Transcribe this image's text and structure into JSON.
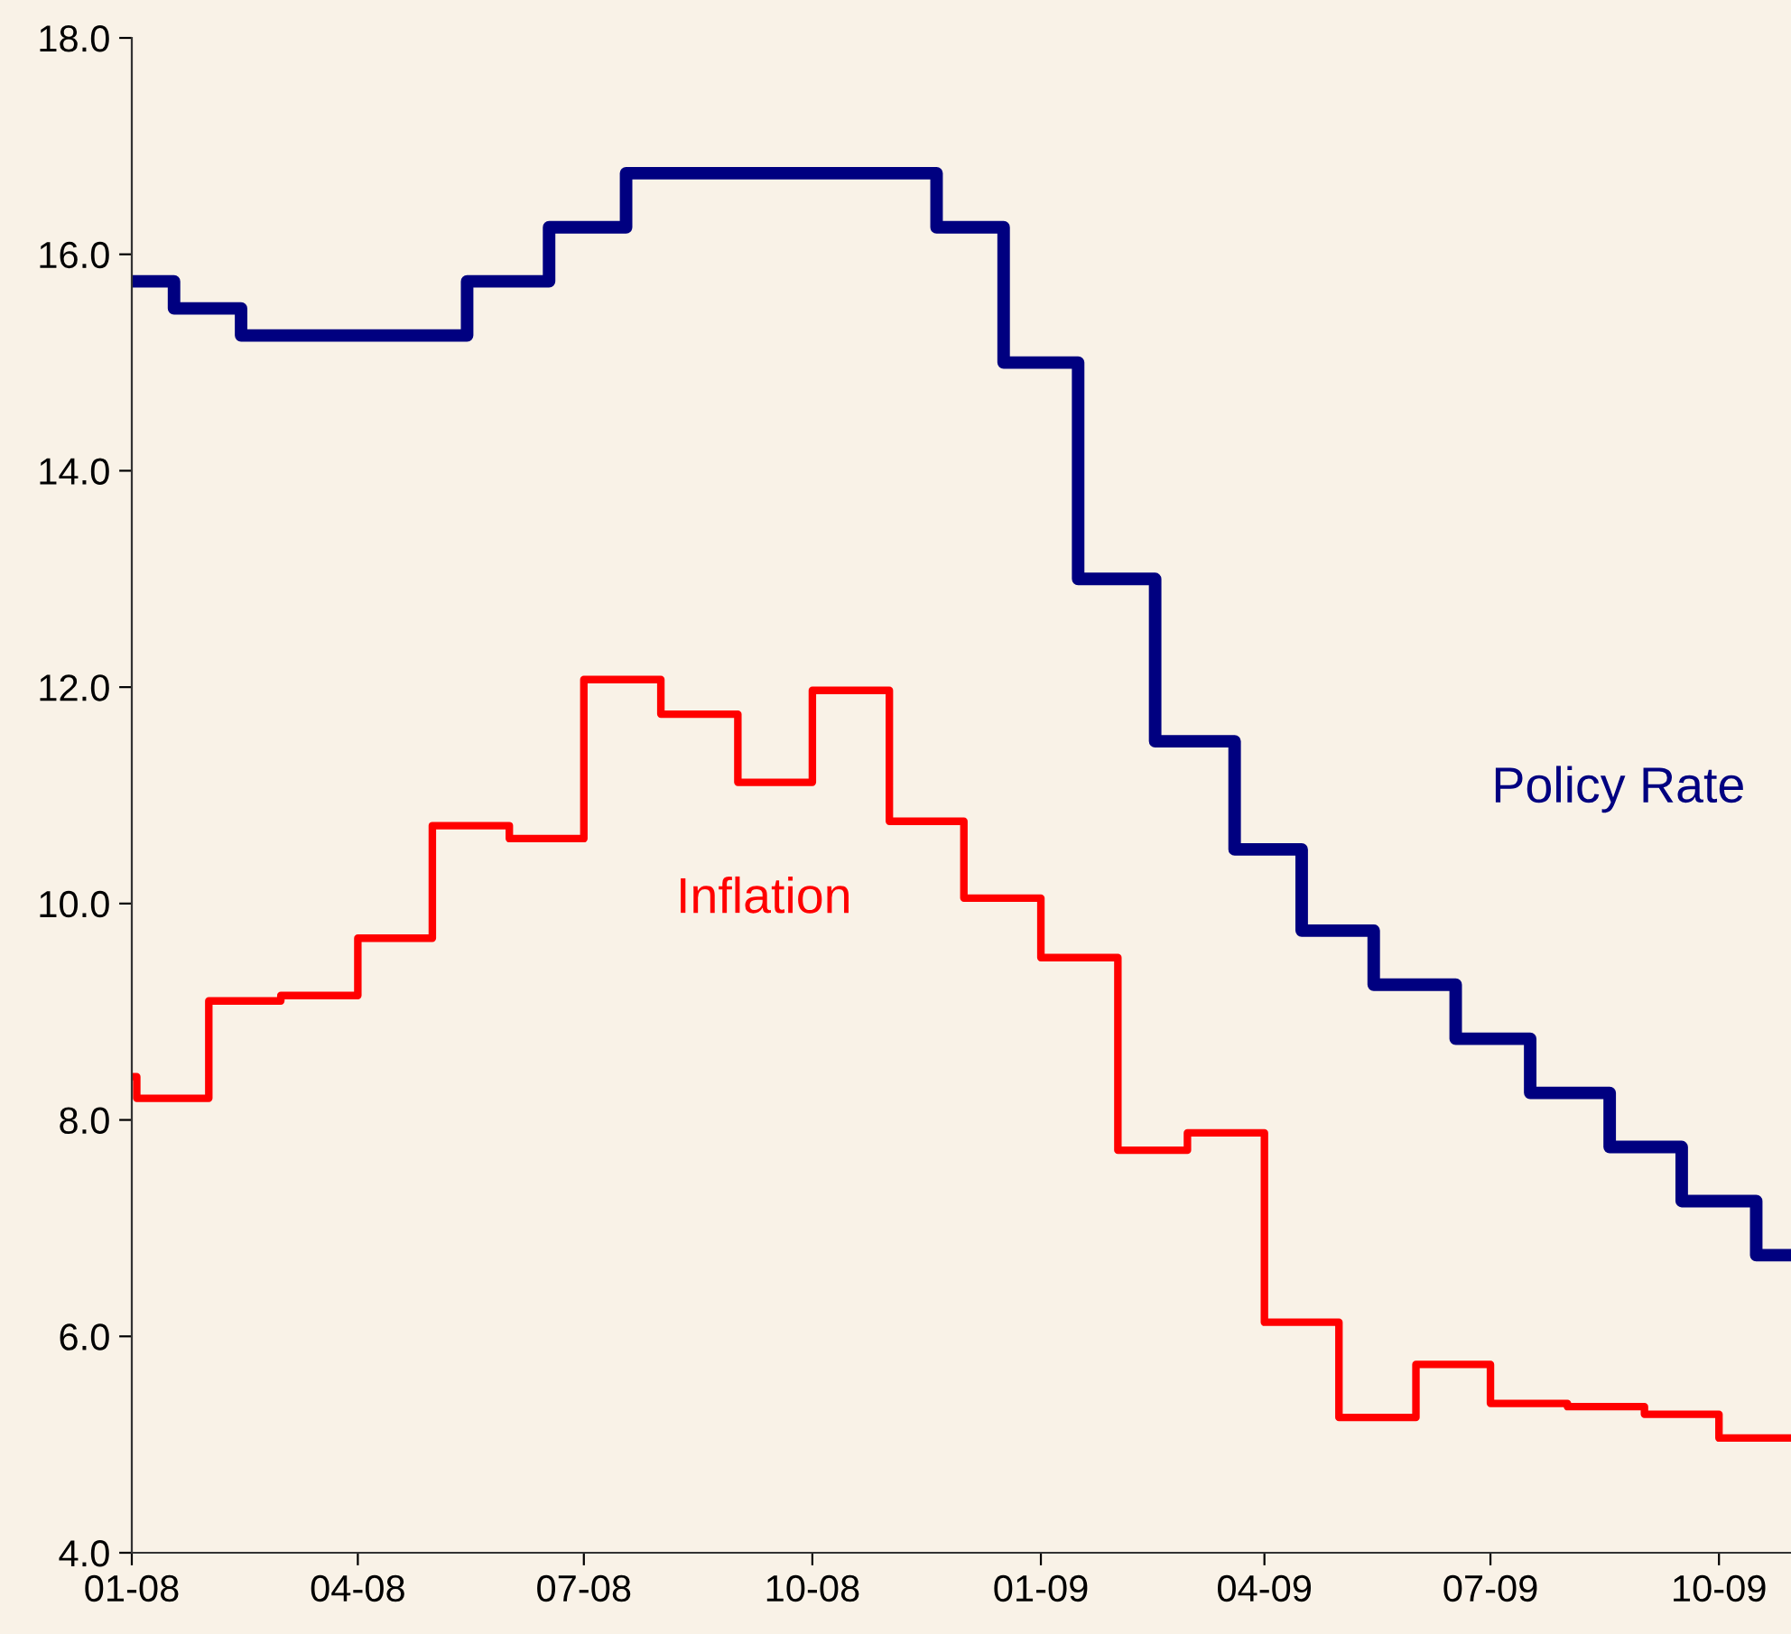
{
  "chart_data": {
    "type": "step",
    "series": [
      {
        "name": "Policy Rate",
        "color": "#000080",
        "x": [
          "2008-01-01",
          "2008-01-18",
          "2008-02-14",
          "2008-05-15",
          "2008-06-17",
          "2008-07-18",
          "2008-11-20",
          "2008-12-17",
          "2009-01-16",
          "2009-02-16",
          "2009-03-20",
          "2009-04-16",
          "2009-05-15",
          "2009-06-17",
          "2009-07-17",
          "2009-08-18",
          "2009-09-16",
          "2009-10-16",
          "2009-10-30"
        ],
        "values": [
          15.75,
          15.5,
          15.25,
          15.75,
          16.25,
          16.75,
          16.25,
          15.0,
          13.0,
          11.5,
          10.5,
          9.75,
          9.25,
          8.75,
          8.25,
          7.75,
          7.25,
          6.75,
          6.75
        ]
      },
      {
        "name": "Inflation",
        "color": "#ff0000",
        "x": [
          "2008-01-01",
          "2008-01-03",
          "2008-02-01",
          "2008-03-01",
          "2008-04-01",
          "2008-05-01",
          "2008-06-01",
          "2008-07-01",
          "2008-08-01",
          "2008-09-01",
          "2008-10-01",
          "2008-11-01",
          "2008-12-01",
          "2009-01-01",
          "2009-02-01",
          "2009-03-01",
          "2009-04-01",
          "2009-05-01",
          "2009-06-01",
          "2009-07-01",
          "2009-08-01",
          "2009-09-01",
          "2009-10-01",
          "2009-10-30"
        ],
        "values": [
          8.4,
          8.2,
          9.1,
          9.15,
          9.68,
          10.72,
          10.6,
          12.07,
          11.75,
          11.12,
          11.97,
          10.76,
          10.05,
          9.5,
          7.72,
          7.88,
          6.13,
          5.25,
          5.74,
          5.38,
          5.35,
          5.28,
          5.06,
          5.06
        ]
      }
    ],
    "xlim": [
      "2008-01-01",
      "2009-10-30"
    ],
    "xticks": [
      {
        "value": "2008-01-01",
        "label": "01-08"
      },
      {
        "value": "2008-04-01",
        "label": "04-08"
      },
      {
        "value": "2008-07-01",
        "label": "07-08"
      },
      {
        "value": "2008-10-01",
        "label": "10-08"
      },
      {
        "value": "2009-01-01",
        "label": "01-09"
      },
      {
        "value": "2009-04-01",
        "label": "04-09"
      },
      {
        "value": "2009-07-01",
        "label": "07-09"
      },
      {
        "value": "2009-10-01",
        "label": "10-09"
      }
    ],
    "ylim": [
      4,
      18
    ],
    "yticks": [
      {
        "value": 4,
        "label": "4.0"
      },
      {
        "value": 6,
        "label": "6.0"
      },
      {
        "value": 8,
        "label": "8.0"
      },
      {
        "value": 10,
        "label": "10.0"
      },
      {
        "value": 12,
        "label": "12.0"
      },
      {
        "value": 14,
        "label": "14.0"
      },
      {
        "value": 16,
        "label": "16.0"
      },
      {
        "value": 18,
        "label": "18.0"
      }
    ],
    "grid": false,
    "legend": false,
    "marker": "none",
    "line_style": "solid"
  }
}
